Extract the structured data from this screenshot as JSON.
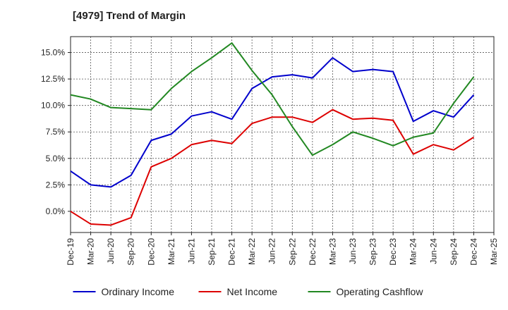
{
  "chart_data": {
    "type": "line",
    "title": "[4979]  Trend of Margin",
    "xlabel": "",
    "ylabel": "",
    "categories": [
      "Dec-19",
      "Mar-20",
      "Jun-20",
      "Sep-20",
      "Dec-20",
      "Mar-21",
      "Jun-21",
      "Sep-21",
      "Dec-21",
      "Mar-22",
      "Jun-22",
      "Sep-22",
      "Dec-22",
      "Mar-23",
      "Jun-23",
      "Sep-23",
      "Dec-23",
      "Mar-24",
      "Jun-24",
      "Sep-24",
      "Dec-24",
      "Mar-25"
    ],
    "ylim": [
      -2.0,
      16.5
    ],
    "yticks": [
      0.0,
      2.5,
      5.0,
      7.5,
      10.0,
      12.5,
      15.0
    ],
    "ytick_labels": [
      "0.0%",
      "2.5%",
      "5.0%",
      "7.5%",
      "10.0%",
      "12.5%",
      "15.0%"
    ],
    "grid": true,
    "legend_position": "bottom",
    "series": [
      {
        "name": "Ordinary Income",
        "color": "#0000cc",
        "values": [
          3.8,
          2.5,
          2.3,
          3.4,
          6.7,
          7.3,
          9.0,
          9.4,
          8.7,
          11.6,
          12.7,
          12.9,
          12.6,
          14.5,
          13.2,
          13.4,
          13.2,
          8.5,
          9.5,
          8.9,
          11.0,
          null
        ]
      },
      {
        "name": "Net Income",
        "color": "#dd0000",
        "values": [
          0.0,
          -1.2,
          -1.3,
          -0.6,
          4.2,
          5.0,
          6.3,
          6.7,
          6.4,
          8.3,
          8.9,
          8.9,
          8.4,
          9.6,
          8.7,
          8.8,
          8.6,
          5.4,
          6.3,
          5.8,
          7.0,
          null
        ]
      },
      {
        "name": "Operating Cashflow",
        "color": "#228822",
        "values": [
          11.0,
          10.6,
          9.8,
          9.7,
          9.6,
          11.6,
          13.2,
          14.5,
          15.9,
          13.3,
          11.0,
          8.0,
          5.3,
          6.3,
          7.5,
          6.9,
          6.2,
          7.0,
          7.4,
          10.2,
          12.7,
          null
        ]
      }
    ]
  }
}
